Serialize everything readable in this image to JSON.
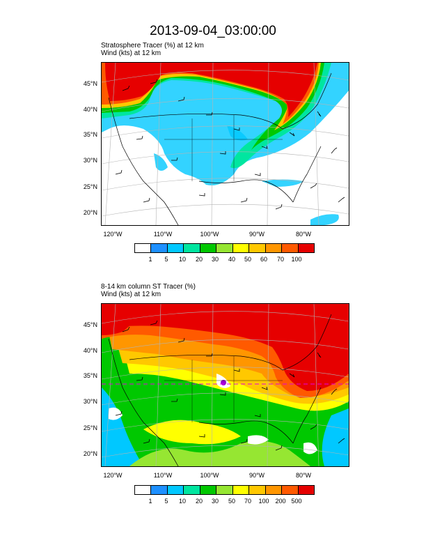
{
  "title": "2013-09-04_03:00:00",
  "panels": [
    {
      "title_line1": "Stratosphere Tracer   (%)    at   12 km",
      "title_line2": "Wind   (kts)    at   12 km",
      "lat_labels": [
        "45°N",
        "40°N",
        "35°N",
        "30°N",
        "25°N",
        "20°N"
      ],
      "lon_labels": [
        "120°W",
        "110°W",
        "100°W",
        "90°W",
        "80°W"
      ],
      "colorbar_colors": [
        "#ffffff",
        "#1e90ff",
        "#00c8ff",
        "#00e6a0",
        "#00c800",
        "#96e632",
        "#ffff00",
        "#ffc800",
        "#ff9600",
        "#ff5a00",
        "#e60000"
      ],
      "colorbar_labels": [
        "1",
        "5",
        "10",
        "20",
        "30",
        "40",
        "50",
        "60",
        "70",
        "100"
      ]
    },
    {
      "title_line1": "8-14 km column ST Tracer   (%)",
      "title_line2": "Wind   (kts)    at   12 km",
      "lat_labels": [
        "45°N",
        "40°N",
        "35°N",
        "30°N",
        "25°N",
        "20°N"
      ],
      "lon_labels": [
        "120°W",
        "110°W",
        "100°W",
        "90°W",
        "80°W"
      ],
      "colorbar_colors": [
        "#ffffff",
        "#1e90ff",
        "#00c8ff",
        "#00e6a0",
        "#00c800",
        "#96e632",
        "#ffff00",
        "#ffc800",
        "#ff9600",
        "#ff5a00",
        "#e60000"
      ],
      "colorbar_labels": [
        "1",
        "5",
        "10",
        "20",
        "30",
        "50",
        "70",
        "100",
        "200",
        "500"
      ]
    }
  ]
}
